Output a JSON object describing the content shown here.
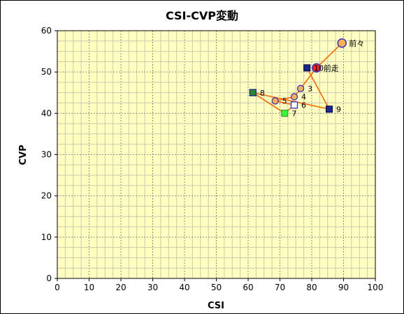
{
  "chart_data": {
    "type": "scatter",
    "title": "CSI-CVP変動",
    "xlabel": "CSI",
    "ylabel": "CVP",
    "xlim": [
      0,
      100
    ],
    "ylim": [
      0,
      60
    ],
    "xticks": [
      0,
      10,
      20,
      30,
      40,
      50,
      60,
      70,
      80,
      90,
      100
    ],
    "yticks": [
      0,
      10,
      20,
      30,
      40,
      50,
      60
    ],
    "minor_grid_step": 2.5,
    "grid": true,
    "colors": {
      "plot_bg": "#ffffc0",
      "grid": "#a8a8a8",
      "line": "#ff6600",
      "circle_fill": "#ffb050",
      "circle_stroke": "#3333cc",
      "square_blue": "#1a2a8c",
      "square_green_fill": "#2a8a2a",
      "square_bright_green": "#33ff33",
      "square_white": "#ffffff",
      "red_point": "#ee2222"
    },
    "path_order": [
      "前々",
      "前走",
      "3",
      "4",
      "5",
      "6",
      "7",
      "8",
      "9",
      "10"
    ],
    "points": [
      {
        "label": "前々",
        "x": 89.5,
        "y": 57,
        "marker": "circle-large"
      },
      {
        "label": "前走",
        "x": 81.5,
        "y": 51,
        "marker": "circle-red"
      },
      {
        "label": "3",
        "x": 76.5,
        "y": 46,
        "marker": "circle"
      },
      {
        "label": "4",
        "x": 74.5,
        "y": 44,
        "marker": "circle"
      },
      {
        "label": "5",
        "x": 68.5,
        "y": 43,
        "marker": "circle"
      },
      {
        "label": "6",
        "x": 74.5,
        "y": 42,
        "marker": "square-white"
      },
      {
        "label": "7",
        "x": 71.5,
        "y": 40,
        "marker": "square-bright-green"
      },
      {
        "label": "8",
        "x": 61.5,
        "y": 45,
        "marker": "square-green"
      },
      {
        "label": "9",
        "x": 85.5,
        "y": 41,
        "marker": "square-blue"
      },
      {
        "label": "10",
        "x": 78.5,
        "y": 51,
        "marker": "square-blue"
      }
    ]
  }
}
